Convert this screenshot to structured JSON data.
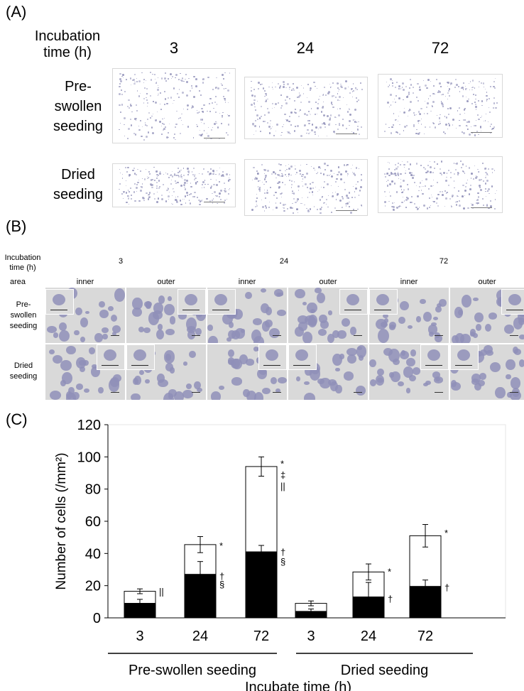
{
  "panelA": {
    "label": "(A)",
    "header_line1": "Incubation",
    "header_line2": "time (h)",
    "times": [
      "3",
      "24",
      "72"
    ],
    "rows": [
      {
        "lines": [
          "Pre-",
          "swollen",
          "seeding"
        ]
      },
      {
        "lines": [
          "Dried",
          "seeding"
        ]
      }
    ]
  },
  "panelB": {
    "label": "(B)",
    "header_line1": "Incubation",
    "header_line2": "time (h)",
    "area_label": "area",
    "times": [
      "3",
      "24",
      "72"
    ],
    "areas": [
      "inner",
      "outer",
      "inner",
      "outer",
      "inner",
      "outer"
    ],
    "rows": [
      {
        "lines": [
          "Pre-",
          "swollen",
          "seeding"
        ]
      },
      {
        "lines": [
          "Dried",
          "seeding"
        ]
      }
    ],
    "cell_color": "#8f8fb8",
    "bg_color": "#d9d9d9"
  },
  "panelC": {
    "label": "(C)",
    "chart_data": {
      "type": "bar",
      "stacked": true,
      "ylabel": "Number of cells (/mm²)",
      "xlabel": "Incubate time (h)",
      "ylim": [
        0,
        120
      ],
      "yticks": [
        0,
        20,
        40,
        60,
        80,
        100,
        120
      ],
      "categories": [
        "3",
        "24",
        "72",
        "3",
        "24",
        "72"
      ],
      "groups": [
        {
          "label": "Pre-swollen seeding",
          "indices": [
            0,
            1,
            2
          ]
        },
        {
          "label": "Dried seeding",
          "indices": [
            3,
            4,
            5
          ]
        }
      ],
      "series": [
        {
          "color": "#000000",
          "values": [
            9,
            27,
            41,
            4,
            13,
            19.5
          ],
          "errors": [
            2.5,
            8,
            4,
            1.5,
            9,
            4
          ]
        },
        {
          "color": "#ffffff",
          "totals": [
            16.5,
            45.5,
            94,
            9,
            28.5,
            51
          ],
          "errors": [
            1.5,
            5,
            6,
            1.5,
            5,
            7
          ]
        }
      ],
      "annotations": [
        {
          "bar": 0,
          "y": 16.5,
          "text": "||"
        },
        {
          "bar": 1,
          "y": 45,
          "text": "*"
        },
        {
          "bar": 1,
          "y": 26,
          "text": "†"
        },
        {
          "bar": 1,
          "y": 21,
          "text": "§"
        },
        {
          "bar": 2,
          "y": 96,
          "text": "*"
        },
        {
          "bar": 2,
          "y": 89,
          "text": "‡"
        },
        {
          "bar": 2,
          "y": 82,
          "text": "||"
        },
        {
          "bar": 2,
          "y": 41,
          "text": "†"
        },
        {
          "bar": 2,
          "y": 35,
          "text": "§"
        },
        {
          "bar": 4,
          "y": 29,
          "text": "*"
        },
        {
          "bar": 4,
          "y": 12,
          "text": "†"
        },
        {
          "bar": 5,
          "y": 53,
          "text": "*"
        },
        {
          "bar": 5,
          "y": 19,
          "text": "†"
        }
      ]
    }
  }
}
